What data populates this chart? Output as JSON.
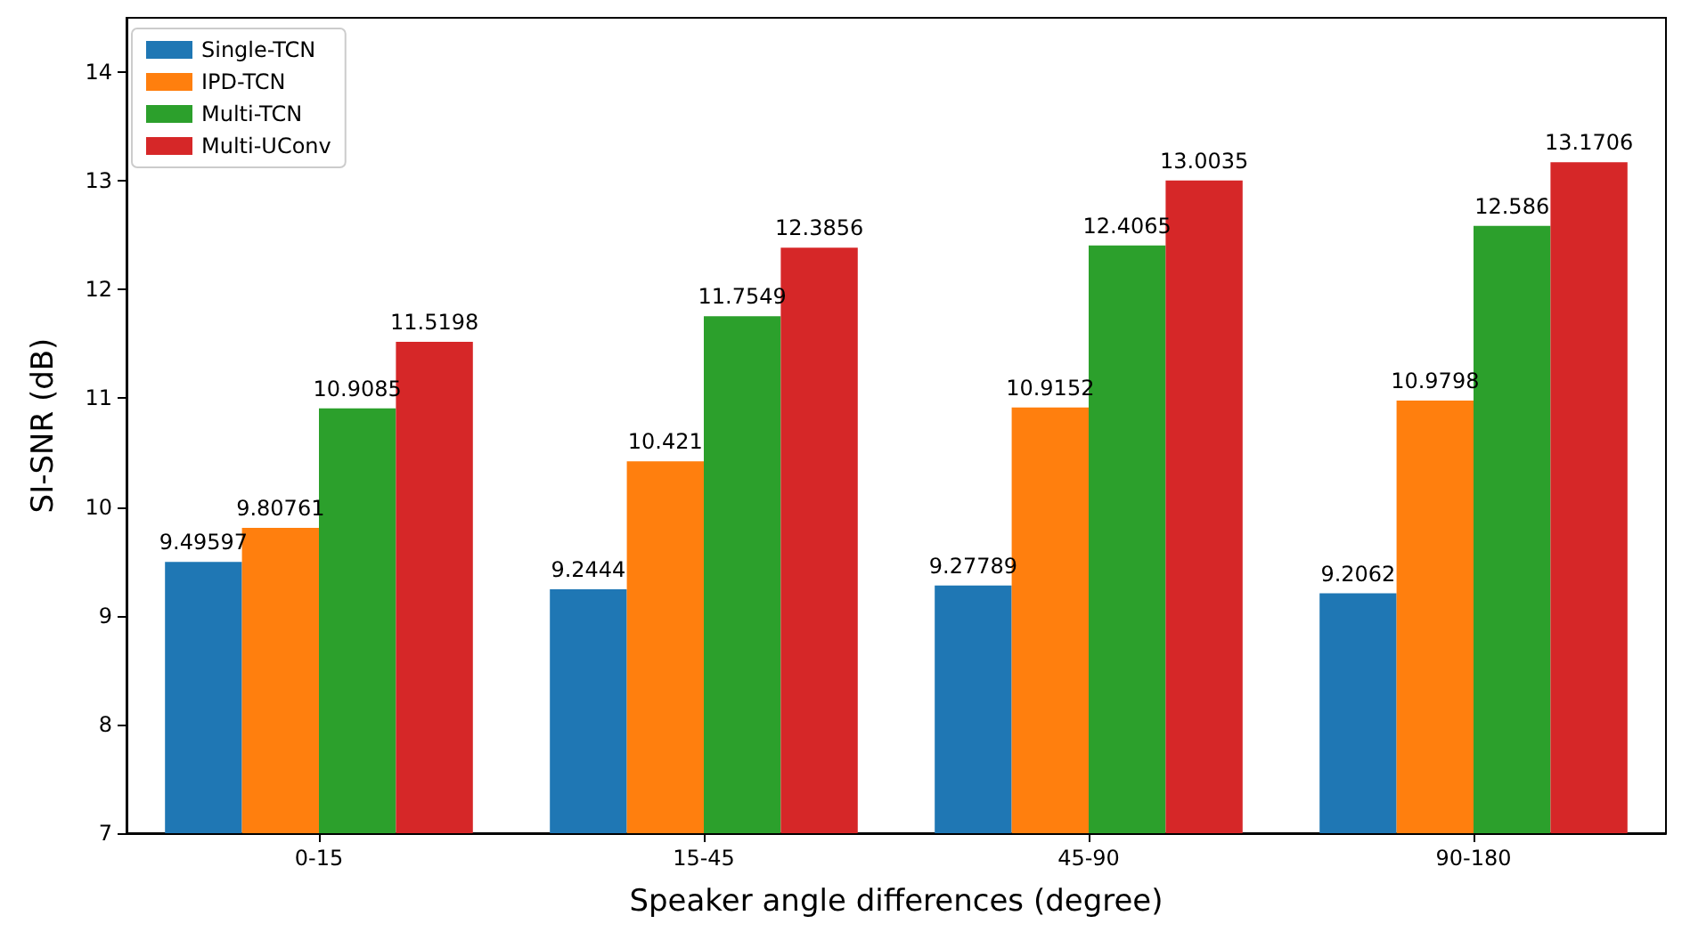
{
  "chart_data": {
    "type": "bar",
    "xlabel": "Speaker angle differences (degree)",
    "ylabel": "SI-SNR (dB)",
    "categories": [
      "0-15",
      "15-45",
      "45-90",
      "90-180"
    ],
    "series": [
      {
        "name": "Single-TCN",
        "color": "#1f77b4",
        "values": [
          9.49597,
          9.2444,
          9.27789,
          9.2062
        ]
      },
      {
        "name": "IPD-TCN",
        "color": "#ff7f0e",
        "values": [
          9.80761,
          10.421,
          10.9152,
          10.9798
        ]
      },
      {
        "name": "Multi-TCN",
        "color": "#2ca02c",
        "values": [
          10.9085,
          11.7549,
          12.4065,
          12.586
        ]
      },
      {
        "name": "Multi-UConv",
        "color": "#d62728",
        "values": [
          11.5198,
          12.3856,
          13.0035,
          13.1706
        ]
      }
    ],
    "ylim": [
      7,
      14.5
    ],
    "yticks": [
      7,
      8,
      9,
      10,
      11,
      12,
      13,
      14
    ],
    "data_labels": true,
    "legend": "top left",
    "grid": false
  }
}
